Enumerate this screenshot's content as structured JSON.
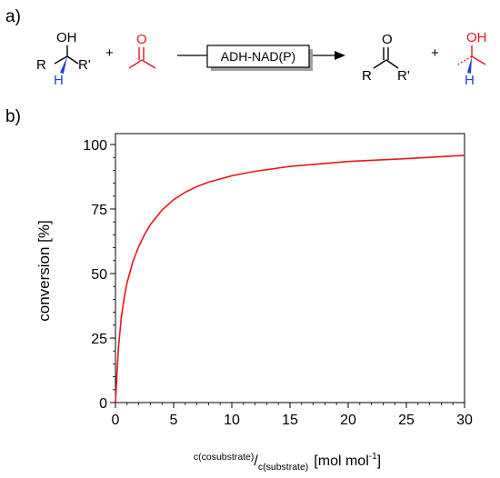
{
  "panel_a": {
    "panel_label": "a)",
    "substrate": {
      "oh": "OH",
      "r_left": "R",
      "r_right": "R'",
      "h": "H"
    },
    "plus": "+",
    "enzyme_box": "ADH-NAD(P)",
    "product_ketone": {
      "o": "O",
      "r_left": "R",
      "r_right": "R'"
    },
    "coproduct": {
      "oh": "OH",
      "h": "H"
    },
    "colors": {
      "cosubstrate": "#e8161c",
      "hydrogen": "#1a3fd6",
      "box_shadow": "#a0a0a0"
    }
  },
  "panel_b": {
    "panel_label": "b)",
    "xlabel_numerator": "c(cosubstrate)",
    "xlabel_slash": "/",
    "xlabel_denominator": "c(substrate)",
    "xlabel_unit": "[mol mol",
    "xlabel_exp": "-1",
    "xlabel_close": "]"
  },
  "chart_data": {
    "type": "line",
    "title": "",
    "xlabel": "c(cosubstrate)/c(substrate) [mol mol-1]",
    "ylabel": "conversion [%]",
    "xlim": [
      0,
      30
    ],
    "ylim": [
      0,
      100
    ],
    "xticks": [
      0,
      5,
      10,
      15,
      20,
      25,
      30
    ],
    "yticks": [
      0,
      25,
      50,
      75,
      100
    ],
    "grid": false,
    "series": [
      {
        "color": "#e8161c",
        "x": [
          0,
          0.25,
          0.5,
          0.75,
          1,
          1.5,
          2,
          2.5,
          3,
          4,
          5,
          6,
          7,
          8,
          10,
          12,
          15,
          20,
          25,
          30
        ],
        "y": [
          0,
          20.9,
          32.8,
          40.6,
          46.5,
          54.6,
          60.5,
          65.1,
          68.9,
          74.6,
          78.6,
          81.5,
          83.7,
          85.4,
          87.9,
          89.6,
          91.5,
          93.4,
          94.5,
          95.8
        ]
      }
    ],
    "colors": {
      "axis": "#000000",
      "line": "#e8161c"
    }
  }
}
